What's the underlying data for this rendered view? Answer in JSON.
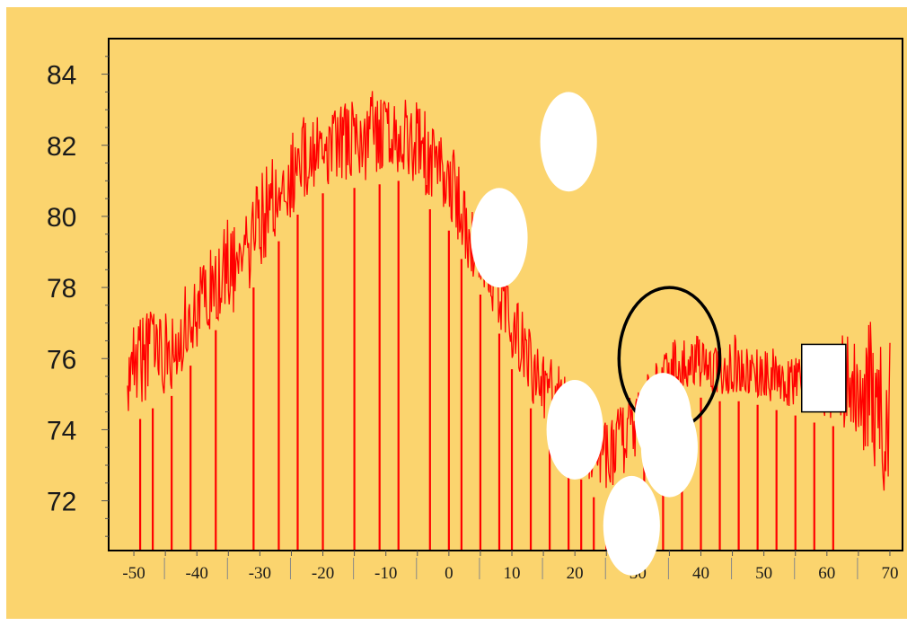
{
  "chart_data": {
    "type": "line",
    "title": "",
    "xlabel": "",
    "ylabel": "",
    "xlim": [
      -54,
      72
    ],
    "ylim": [
      70.6,
      85
    ],
    "x_ticks": [
      -50,
      -40,
      -30,
      -20,
      -10,
      0,
      10,
      20,
      30,
      40,
      50,
      60,
      70
    ],
    "x_tick_labels": [
      "-50",
      "-40",
      "-30",
      "-20",
      "-10",
      "0",
      "10",
      "20",
      "30",
      "40",
      "50",
      "60",
      "70"
    ],
    "y_ticks": [
      72,
      74,
      76,
      78,
      80,
      82,
      84
    ],
    "y_tick_labels": [
      "72",
      "74",
      "76",
      "78",
      "80",
      "82",
      "84"
    ],
    "grid": false,
    "colors": {
      "background": "#fbd46e",
      "series": "#ff0000",
      "axes": "#000000",
      "occluder": "#ffffff",
      "annotation": "#000000"
    },
    "series": [
      {
        "style": "dense noisy signal with periodic dropouts to the baseline",
        "envelope": {
          "x": [
            -51,
            -49,
            -47,
            -45,
            -43,
            -41,
            -39,
            -37,
            -35,
            -33,
            -31,
            -29,
            -27,
            -25,
            -23,
            -21,
            -19,
            -17,
            -15,
            -13,
            -11,
            -9,
            -7,
            -5,
            -3,
            -1,
            1,
            3,
            5,
            7,
            9,
            11,
            13,
            15,
            17,
            19,
            21,
            23,
            25,
            27,
            29,
            31,
            33,
            35,
            37,
            39,
            41,
            43,
            45,
            47,
            49,
            51,
            53,
            55,
            57,
            59,
            61,
            63,
            65,
            67,
            69,
            70
          ],
          "mean": [
            76.0,
            75.9,
            75.8,
            75.9,
            76.3,
            77.0,
            77.3,
            78.3,
            78.7,
            78.2,
            79.3,
            79.9,
            80.6,
            81.1,
            81.5,
            81.8,
            81.9,
            82.1,
            82.2,
            82.2,
            82.3,
            82.5,
            82.2,
            82.0,
            81.6,
            81.3,
            80.5,
            79.5,
            79.0,
            78.5,
            77.5,
            76.5,
            75.8,
            75.3,
            75.0,
            74.5,
            74.0,
            73.5,
            73.2,
            73.5,
            74.0,
            74.6,
            75.2,
            75.6,
            75.8,
            76.0,
            75.9,
            75.8,
            75.9,
            75.8,
            75.7,
            75.6,
            75.5,
            75.3,
            75.2,
            75.0,
            75.0,
            75.2,
            75.0,
            74.6,
            74.0,
            73.8
          ],
          "min": [
            74.3,
            74.5,
            74.8,
            75.0,
            75.3,
            76.0,
            76.3,
            77.0,
            77.5,
            77.0,
            78.2,
            78.8,
            79.5,
            80.0,
            80.5,
            80.8,
            80.9,
            81.0,
            81.0,
            81.0,
            81.1,
            81.4,
            81.0,
            80.8,
            80.4,
            80.1,
            79.5,
            78.5,
            78.0,
            77.3,
            76.5,
            75.3,
            74.8,
            74.3,
            73.8,
            73.2,
            72.8,
            72.3,
            72.0,
            72.3,
            72.7,
            73.6,
            74.3,
            74.7,
            75.0,
            75.2,
            75.0,
            75.0,
            75.0,
            75.0,
            74.9,
            74.8,
            74.7,
            74.6,
            74.5,
            74.3,
            74.3,
            74.0,
            73.5,
            73.0,
            72.3,
            72.0
          ],
          "max": [
            77.7,
            77.4,
            77.5,
            77.4,
            77.2,
            78.7,
            78.7,
            80.0,
            80.0,
            79.5,
            80.9,
            81.4,
            82.0,
            82.5,
            82.9,
            83.0,
            83.1,
            83.2,
            83.4,
            83.5,
            83.6,
            83.7,
            83.4,
            83.2,
            82.8,
            82.5,
            81.8,
            80.5,
            80.0,
            79.5,
            78.5,
            77.6,
            76.8,
            76.2,
            76.0,
            75.5,
            75.0,
            74.7,
            74.4,
            74.6,
            75.1,
            75.4,
            76.0,
            76.4,
            76.7,
            76.8,
            76.6,
            76.6,
            76.8,
            76.6,
            76.5,
            76.4,
            76.2,
            76.1,
            76.0,
            75.9,
            76.5,
            76.8,
            77.0,
            77.2,
            76.8,
            76.5
          ]
        },
        "dropouts_x": [
          -49,
          -47,
          -44,
          -41,
          -37,
          -31,
          -27,
          -24,
          -20,
          -15,
          -11,
          -8,
          -3,
          0,
          2,
          5,
          8,
          10,
          13,
          16,
          19,
          21,
          23,
          25,
          27,
          29,
          31,
          34,
          37,
          40,
          43,
          46,
          49,
          52,
          55,
          58,
          61
        ]
      }
    ],
    "annotations": [
      {
        "type": "ellipse-outline",
        "center": [
          35,
          76
        ],
        "radii": [
          8,
          2
        ]
      },
      {
        "type": "white-ellipse",
        "center": [
          19,
          82.1
        ],
        "radii": [
          4.5,
          1.4
        ]
      },
      {
        "type": "white-ellipse",
        "center": [
          8,
          79.4
        ],
        "radii": [
          4.5,
          1.4
        ]
      },
      {
        "type": "white-ellipse",
        "center": [
          20,
          74.0
        ],
        "radii": [
          4.5,
          1.4
        ]
      },
      {
        "type": "white-ellipse",
        "center": [
          34,
          74.3
        ],
        "radii": [
          4.5,
          1.3
        ]
      },
      {
        "type": "white-ellipse",
        "center": [
          35,
          73.5
        ],
        "radii": [
          4.5,
          1.4
        ]
      },
      {
        "type": "white-ellipse",
        "center": [
          29,
          71.3
        ],
        "radii": [
          4.5,
          1.4
        ]
      },
      {
        "type": "white-rectangle",
        "x_range": [
          56,
          63
        ],
        "y_range": [
          74.5,
          76.4
        ]
      }
    ]
  }
}
